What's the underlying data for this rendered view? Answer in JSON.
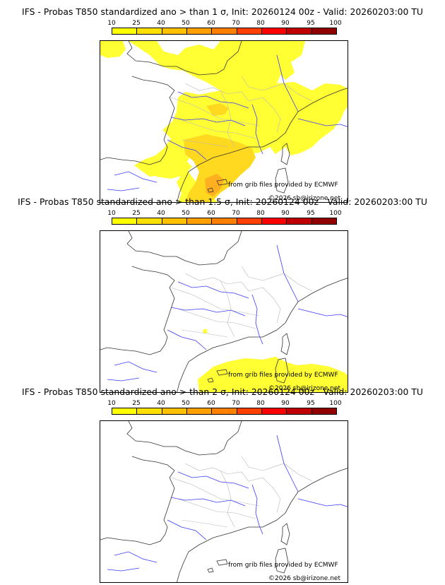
{
  "colorbar": {
    "ticks": [
      "10",
      "25",
      "40",
      "50",
      "60",
      "70",
      "80",
      "90",
      "95",
      "100"
    ],
    "colors": [
      "#ffff00",
      "#ffe000",
      "#ffc000",
      "#ffa000",
      "#ff8000",
      "#ff4000",
      "#ff0000",
      "#c00000",
      "#900000",
      "#600000"
    ]
  },
  "panels": [
    {
      "title": "IFS - Probas T850  standardized ano > than 1 σ, Init: 20260124 00z - Valid: 20260203:00 TU",
      "credit_source": "from grib files provided by ECMWF",
      "credit_copyright": "©2026 sb@irizone.net"
    },
    {
      "title": "IFS - Probas T850  standardized ano > than 1.5 σ, Init: 20260124 00z - Valid: 20260203:00 TU",
      "credit_source": "from grib files provided by ECMWF",
      "credit_copyright": "©2026 sb@irizone.net"
    },
    {
      "title": "IFS - Probas T850  standardized ano > than 2 σ, Init: 20260124 00z - Valid: 20260203:00 TU",
      "credit_source": "from grib files provided by ECMWF",
      "credit_copyright": "©2026 sb@irizone.net"
    }
  ]
}
